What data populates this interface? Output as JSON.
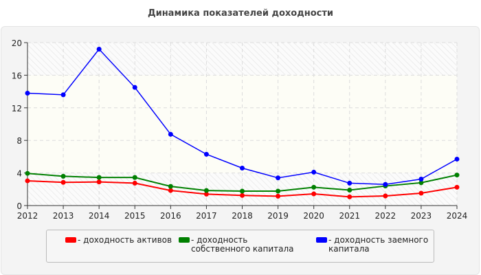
{
  "chart_data": {
    "type": "line",
    "title": "Динамика показателей доходности",
    "xlabel": "",
    "ylabel": "",
    "x": [
      "2012",
      "2013",
      "2014",
      "2015",
      "2016",
      "2017",
      "2018",
      "2019",
      "2020",
      "2021",
      "2022",
      "2023",
      "2024"
    ],
    "ylim": [
      0,
      20
    ],
    "yticks": [
      "0",
      "4",
      "8",
      "12",
      "16",
      "20"
    ],
    "grid": true,
    "legend_position": "bottom",
    "series": [
      {
        "name": "- доходность активов",
        "color": "#ff0000",
        "values": [
          3.04,
          2.85,
          2.9,
          2.75,
          1.85,
          1.4,
          1.24,
          1.15,
          1.43,
          1.07,
          1.18,
          1.52,
          2.25
        ]
      },
      {
        "name": "- доходность собственного капитала",
        "color": "#008000",
        "values": [
          3.95,
          3.6,
          3.45,
          3.45,
          2.35,
          1.85,
          1.77,
          1.77,
          2.25,
          1.9,
          2.4,
          2.8,
          3.75
        ]
      },
      {
        "name": "- доходность заемного капитала",
        "color": "#0000ff",
        "values": [
          13.8,
          13.6,
          19.2,
          14.5,
          8.75,
          6.3,
          4.6,
          3.4,
          4.1,
          2.75,
          2.6,
          3.25,
          5.7
        ]
      }
    ]
  }
}
